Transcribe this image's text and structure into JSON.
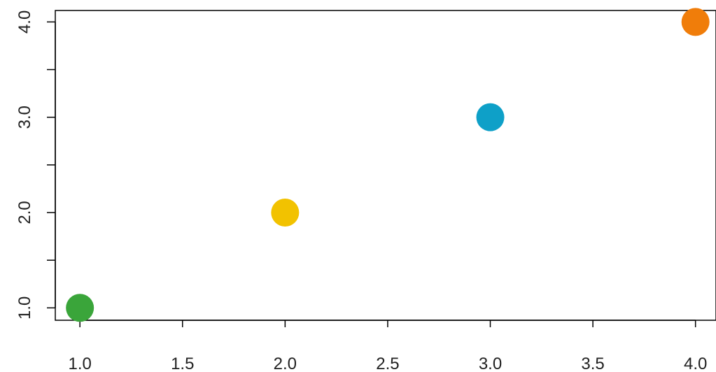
{
  "chart_data": {
    "type": "scatter",
    "title": "",
    "xlabel": "",
    "ylabel": "",
    "xlim": [
      0.88,
      4.1
    ],
    "ylim": [
      0.87,
      4.12
    ],
    "x_ticks": [
      1.0,
      1.5,
      2.0,
      2.5,
      3.0,
      3.5,
      4.0
    ],
    "x_tick_labels": [
      "1.0",
      "1.5",
      "2.0",
      "2.5",
      "3.0",
      "3.5",
      "4.0"
    ],
    "y_ticks": [
      1.0,
      1.5,
      2.0,
      2.5,
      3.0,
      3.5,
      4.0
    ],
    "y_tick_labels": [
      "1.0",
      "",
      "2.0",
      "",
      "3.0",
      "",
      "4.0"
    ],
    "grid": false,
    "points": [
      {
        "x": 1,
        "y": 1,
        "color": "#3aa53a"
      },
      {
        "x": 2,
        "y": 2,
        "color": "#f2c200"
      },
      {
        "x": 3,
        "y": 3,
        "color": "#0ea0c8"
      },
      {
        "x": 4,
        "y": 4,
        "color": "#f07d0a"
      }
    ]
  }
}
